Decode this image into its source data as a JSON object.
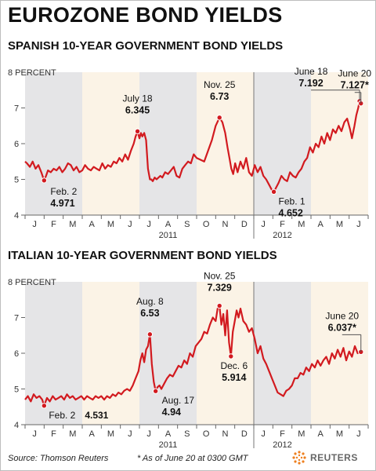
{
  "page": {
    "title": "EUROZONE BOND YIELDS",
    "source": "Source: Thomson Reuters",
    "footnote": "* As of June 20 at 0300 GMT",
    "logo_text": "REUTERS"
  },
  "colors": {
    "line": "#d21a1f",
    "shade_gray": "#e5e5e7",
    "shade_beige": "#fbf3e6",
    "axis": "#666666",
    "dot": "#d21a1f"
  },
  "chart_data": [
    {
      "type": "line",
      "title": "SPANISH 10-YEAR GOVERNMENT BOND YIELDS",
      "unit_label": "8 PERCENT",
      "ylim": [
        4,
        8
      ],
      "yticks": [
        4,
        5,
        6,
        7,
        8
      ],
      "ytick_labels": [
        "4",
        "5",
        "6",
        "7",
        "8"
      ],
      "month_labels": [
        "J",
        "F",
        "M",
        "A",
        "M",
        "J",
        "J",
        "A",
        "S",
        "O",
        "N",
        "D",
        "J",
        "F",
        "M",
        "A",
        "M",
        "J"
      ],
      "year_labels": [
        {
          "label": "2011",
          "month_index": 7
        },
        {
          "label": "2012",
          "month_index": 13
        }
      ],
      "x_unit": "months since Jan 1, 2011",
      "series": [
        {
          "x": [
            0,
            0.1,
            0.25,
            0.4,
            0.55,
            0.7,
            0.85,
            1.0,
            1.1,
            1.2,
            1.35,
            1.5,
            1.65,
            1.8,
            1.95,
            2.1,
            2.25,
            2.4,
            2.55,
            2.7,
            2.85,
            3.0,
            3.15,
            3.3,
            3.45,
            3.6,
            3.75,
            3.9,
            4.05,
            4.2,
            4.35,
            4.5,
            4.65,
            4.8,
            4.95,
            5.1,
            5.25,
            5.4,
            5.55,
            5.7,
            5.8,
            5.9,
            6.0,
            6.08,
            6.15,
            6.25,
            6.35,
            6.45,
            6.55,
            6.62,
            6.7,
            6.8,
            6.9,
            7.0,
            7.1,
            7.2,
            7.35,
            7.5,
            7.65,
            7.8,
            7.95,
            8.1,
            8.25,
            8.4,
            8.55,
            8.7,
            8.85,
            9.0,
            9.2,
            9.4,
            9.6,
            9.8,
            10.0,
            10.2,
            10.35,
            10.5,
            10.62,
            10.72,
            10.82,
            10.92,
            11.02,
            11.15,
            11.3,
            11.45,
            11.6,
            11.75,
            11.9,
            12.05,
            12.2,
            12.35,
            12.5,
            12.65,
            12.8,
            12.95,
            13.05,
            13.15,
            13.3,
            13.45,
            13.6,
            13.75,
            13.9,
            14.05,
            14.2,
            14.35,
            14.5,
            14.65,
            14.8,
            14.95,
            15.1,
            15.25,
            15.4,
            15.55,
            15.7,
            15.85,
            16.0,
            16.15,
            16.3,
            16.45,
            16.6,
            16.75,
            16.9,
            17.05,
            17.15,
            17.28,
            17.38,
            17.48,
            17.55,
            17.62
          ],
          "y": [
            5.5,
            5.45,
            5.35,
            5.5,
            5.3,
            5.4,
            5.2,
            4.97,
            5.1,
            5.25,
            5.2,
            5.3,
            5.25,
            5.35,
            5.2,
            5.3,
            5.45,
            5.4,
            5.25,
            5.35,
            5.2,
            5.25,
            5.4,
            5.3,
            5.25,
            5.35,
            5.3,
            5.25,
            5.45,
            5.3,
            5.4,
            5.35,
            5.5,
            5.45,
            5.6,
            5.5,
            5.7,
            5.55,
            5.8,
            6.0,
            6.2,
            6.345,
            6.15,
            6.3,
            6.2,
            6.3,
            6.1,
            5.3,
            5.0,
            5.0,
            4.95,
            5.05,
            5.0,
            5.05,
            5.1,
            5.05,
            5.2,
            5.15,
            5.25,
            5.35,
            5.1,
            5.05,
            5.3,
            5.4,
            5.5,
            5.45,
            5.7,
            5.6,
            5.55,
            5.5,
            5.8,
            6.1,
            6.5,
            6.73,
            6.6,
            6.3,
            5.9,
            5.6,
            5.3,
            5.15,
            5.45,
            5.2,
            5.5,
            5.3,
            5.6,
            5.2,
            5.1,
            5.4,
            5.2,
            5.35,
            5.1,
            5.0,
            4.85,
            4.7,
            4.652,
            4.75,
            4.9,
            5.1,
            5.0,
            4.95,
            5.2,
            5.1,
            5.05,
            5.2,
            5.3,
            5.5,
            5.6,
            5.9,
            5.75,
            6.0,
            5.9,
            6.2,
            6.0,
            6.3,
            6.1,
            6.4,
            6.3,
            6.5,
            6.35,
            6.6,
            6.7,
            6.4,
            6.15,
            6.5,
            6.8,
            7.0,
            7.192,
            7.127
          ]
        }
      ],
      "annotations": [
        {
          "label": "Feb. 2",
          "value_text": "4.971",
          "x": 1.0,
          "y": 4.971
        },
        {
          "label": "July 18",
          "value_text": "6.345",
          "x": 5.9,
          "y": 6.345
        },
        {
          "label": "Nov. 25",
          "value_text": "6.73",
          "x": 10.2,
          "y": 6.73
        },
        {
          "label": "Feb. 1",
          "value_text": "4.652",
          "x": 13.05,
          "y": 4.652
        },
        {
          "label": "June 18",
          "value_text": "7.192",
          "x": 17.55,
          "y": 7.192
        },
        {
          "label": "June 20",
          "value_text": "7.127*",
          "x": 17.62,
          "y": 7.127
        }
      ]
    },
    {
      "type": "line",
      "title": "ITALIAN 10-YEAR GOVERNMENT BOND YIELDS",
      "unit_label": "8 PERCENT",
      "ylim": [
        4,
        8
      ],
      "yticks": [
        4,
        5,
        6,
        7,
        8
      ],
      "ytick_labels": [
        "4",
        "5",
        "6",
        "7",
        "8"
      ],
      "month_labels": [
        "J",
        "F",
        "M",
        "A",
        "M",
        "J",
        "J",
        "A",
        "S",
        "O",
        "N",
        "D",
        "J",
        "F",
        "M",
        "A",
        "M",
        "J"
      ],
      "year_labels": [
        {
          "label": "2011",
          "month_index": 7
        },
        {
          "label": "2012",
          "month_index": 13
        }
      ],
      "x_unit": "months since Jan 1, 2011",
      "series": [
        {
          "x": [
            0,
            0.15,
            0.3,
            0.45,
            0.6,
            0.75,
            0.9,
            1.0,
            1.15,
            1.3,
            1.45,
            1.6,
            1.75,
            1.9,
            2.05,
            2.2,
            2.35,
            2.5,
            2.65,
            2.8,
            2.95,
            3.1,
            3.25,
            3.4,
            3.55,
            3.7,
            3.85,
            4.0,
            4.15,
            4.3,
            4.45,
            4.6,
            4.75,
            4.9,
            5.05,
            5.2,
            5.35,
            5.5,
            5.65,
            5.8,
            5.95,
            6.05,
            6.15,
            6.25,
            6.35,
            6.45,
            6.55,
            6.65,
            6.75,
            6.85,
            6.95,
            7.05,
            7.15,
            7.3,
            7.45,
            7.6,
            7.75,
            7.9,
            8.05,
            8.2,
            8.35,
            8.5,
            8.65,
            8.8,
            8.95,
            9.1,
            9.25,
            9.4,
            9.55,
            9.7,
            9.85,
            10.0,
            10.1,
            10.2,
            10.3,
            10.4,
            10.5,
            10.6,
            10.7,
            10.8,
            10.9,
            11.0,
            11.1,
            11.2,
            11.3,
            11.45,
            11.6,
            11.75,
            11.9,
            12.05,
            12.2,
            12.35,
            12.5,
            12.65,
            12.8,
            12.95,
            13.1,
            13.25,
            13.4,
            13.55,
            13.7,
            13.85,
            14.0,
            14.15,
            14.3,
            14.45,
            14.6,
            14.75,
            14.9,
            15.05,
            15.2,
            15.35,
            15.5,
            15.65,
            15.8,
            15.95,
            16.1,
            16.25,
            16.4,
            16.55,
            16.7,
            16.85,
            17.0,
            17.15,
            17.3,
            17.45,
            17.62
          ],
          "y": [
            4.7,
            4.8,
            4.65,
            4.85,
            4.75,
            4.8,
            4.7,
            4.531,
            4.75,
            4.65,
            4.8,
            4.7,
            4.75,
            4.8,
            4.7,
            4.85,
            4.75,
            4.8,
            4.7,
            4.75,
            4.8,
            4.7,
            4.8,
            4.75,
            4.7,
            4.8,
            4.75,
            4.8,
            4.7,
            4.8,
            4.75,
            4.85,
            4.8,
            4.9,
            4.85,
            4.95,
            5.0,
            4.95,
            5.1,
            5.3,
            5.5,
            5.8,
            6.0,
            5.75,
            6.1,
            6.2,
            6.53,
            5.7,
            5.2,
            4.94,
            5.05,
            5.1,
            5.0,
            5.15,
            5.3,
            5.4,
            5.35,
            5.5,
            5.65,
            5.6,
            5.8,
            5.7,
            6.0,
            5.9,
            6.2,
            6.3,
            6.4,
            6.6,
            6.55,
            6.8,
            7.0,
            6.9,
            7.25,
            7.329,
            6.8,
            7.1,
            6.5,
            7.2,
            6.3,
            5.914,
            6.6,
            6.9,
            7.2,
            7.0,
            7.25,
            6.9,
            6.8,
            6.6,
            6.7,
            6.4,
            6.0,
            6.2,
            5.85,
            5.7,
            5.5,
            5.3,
            5.1,
            4.9,
            4.85,
            4.8,
            4.95,
            5.0,
            5.1,
            5.3,
            5.3,
            5.45,
            5.4,
            5.6,
            5.5,
            5.7,
            5.6,
            5.8,
            5.65,
            5.8,
            5.9,
            5.7,
            6.0,
            5.85,
            6.1,
            5.9,
            6.15,
            5.8,
            6.05,
            5.9,
            6.2,
            6.0,
            6.037
          ]
        }
      ],
      "annotations": [
        {
          "label": "Feb. 2",
          "value_text": "4.531",
          "x": 1.0,
          "y": 4.531
        },
        {
          "label": "Aug. 8",
          "value_text": "6.53",
          "x": 6.55,
          "y": 6.53
        },
        {
          "label": "Aug. 17",
          "value_text": "4.94",
          "x": 6.85,
          "y": 4.94
        },
        {
          "label": "Nov. 25",
          "value_text": "7.329",
          "x": 10.2,
          "y": 7.329
        },
        {
          "label": "Dec. 6",
          "value_text": "5.914",
          "x": 10.8,
          "y": 5.914
        },
        {
          "label": "June 20",
          "value_text": "6.037*",
          "x": 17.62,
          "y": 6.037
        }
      ]
    }
  ]
}
